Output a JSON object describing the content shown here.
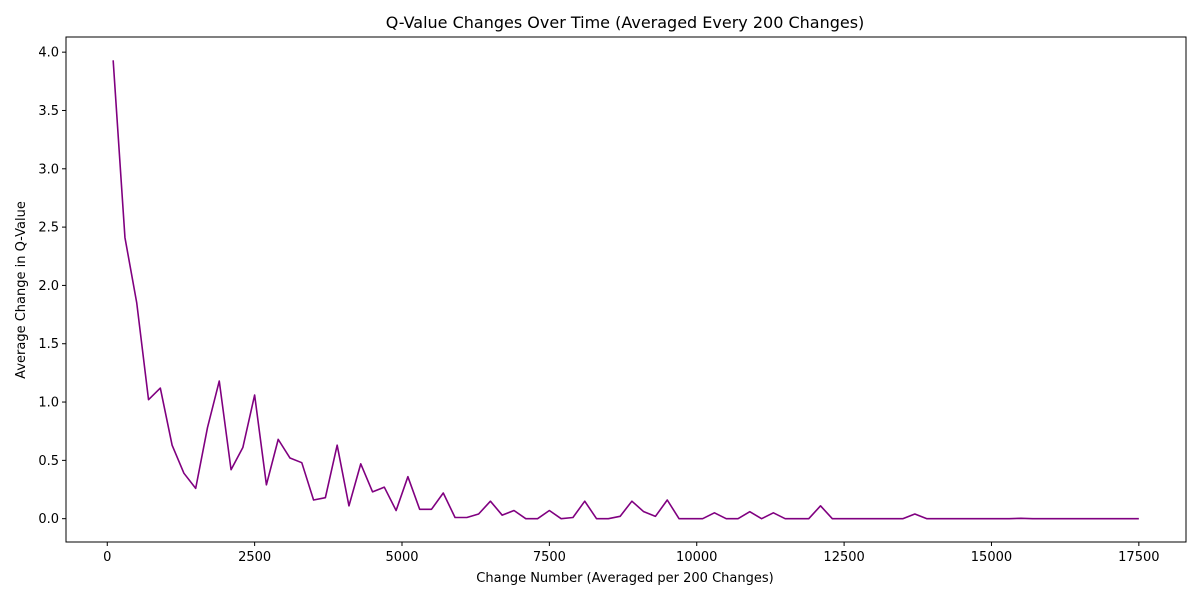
{
  "chart_data": {
    "type": "line",
    "title": "Q-Value Changes Over Time (Averaged Every 200 Changes)",
    "xlabel": "Change Number (Averaged per 200 Changes)",
    "ylabel": "Average Change in Q-Value",
    "xlim": [
      -700,
      18300
    ],
    "ylim": [
      -0.2,
      4.13
    ],
    "xticks": [
      0,
      2500,
      5000,
      7500,
      10000,
      12500,
      15000,
      17500
    ],
    "xtick_labels": [
      "0",
      "2500",
      "5000",
      "7500",
      "10000",
      "12500",
      "15000",
      "17500"
    ],
    "yticks": [
      0.0,
      0.5,
      1.0,
      1.5,
      2.0,
      2.5,
      3.0,
      3.5,
      4.0
    ],
    "ytick_labels": [
      "0.0",
      "0.5",
      "1.0",
      "1.5",
      "2.0",
      "2.5",
      "3.0",
      "3.5",
      "4.0"
    ],
    "grid": false,
    "series": [
      {
        "color": "#800080",
        "x": [
          100,
          300,
          500,
          700,
          900,
          1100,
          1300,
          1500,
          1700,
          1900,
          2100,
          2300,
          2500,
          2700,
          2900,
          3100,
          3300,
          3500,
          3700,
          3900,
          4100,
          4300,
          4500,
          4700,
          4900,
          5100,
          5300,
          5500,
          5700,
          5900,
          6100,
          6300,
          6500,
          6700,
          6900,
          7100,
          7300,
          7500,
          7700,
          7900,
          8100,
          8300,
          8500,
          8700,
          8900,
          9100,
          9300,
          9500,
          9700,
          9900,
          10100,
          10300,
          10500,
          10700,
          10900,
          11100,
          11300,
          11500,
          11700,
          11900,
          12100,
          12300,
          12500,
          12700,
          12900,
          13100,
          13300,
          13500,
          13700,
          13900,
          14100,
          14300,
          14500,
          14700,
          14900,
          15100,
          15300,
          15500,
          15700,
          15900,
          16100,
          16300,
          16500,
          16700,
          16900,
          17100,
          17300,
          17500
        ],
        "y": [
          3.93,
          2.41,
          1.85,
          1.02,
          1.12,
          0.63,
          0.39,
          0.26,
          0.78,
          1.18,
          0.42,
          0.61,
          1.06,
          0.29,
          0.68,
          0.52,
          0.48,
          0.16,
          0.18,
          0.63,
          0.11,
          0.47,
          0.23,
          0.27,
          0.07,
          0.36,
          0.08,
          0.08,
          0.22,
          0.01,
          0.01,
          0.04,
          0.15,
          0.03,
          0.07,
          0.0,
          0.0,
          0.07,
          0.0,
          0.01,
          0.15,
          0.0,
          0.0,
          0.02,
          0.15,
          0.06,
          0.02,
          0.16,
          0.0,
          0.0,
          0.0,
          0.05,
          0.0,
          0.0,
          0.06,
          0.0,
          0.05,
          0.0,
          0.0,
          0.0,
          0.11,
          0.0,
          0.0,
          0.0,
          0.0,
          0.0,
          0.0,
          0.0,
          0.04,
          0.0,
          0.0,
          0.0,
          0.0,
          0.0,
          0.0,
          0.0,
          0.0,
          0.003,
          0.0,
          0.0,
          0.0,
          0.0,
          0.0,
          0.0,
          0.0,
          0.0,
          0.0,
          0.0
        ]
      }
    ]
  }
}
